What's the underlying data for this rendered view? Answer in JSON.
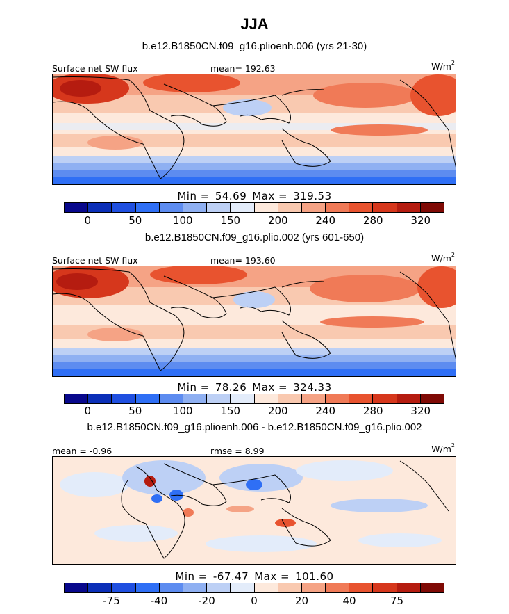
{
  "figure": {
    "title": "JJA",
    "units_prefix": "W/m",
    "units_exp": "2"
  },
  "panels": [
    {
      "subtitle": "b.e12.B1850CN.f09_g16.plioenh.006 (yrs 21-30)",
      "left_label": "Surface net SW flux",
      "center_label": "mean= 192.63",
      "min_label": "Min =",
      "min_value": "54.69",
      "max_label": "Max =",
      "max_value": "319.53",
      "colorbar_ticks": [
        "0",
        "50",
        "100",
        "150",
        "200",
        "240",
        "280",
        "320"
      ],
      "palette": "absolute"
    },
    {
      "subtitle": "b.e12.B1850CN.f09_g16.plio.002 (yrs 601-650)",
      "left_label": "Surface net SW flux",
      "center_label": "mean= 193.60",
      "min_label": "Min =",
      "min_value": "78.26",
      "max_label": "Max =",
      "max_value": "324.33",
      "colorbar_ticks": [
        "0",
        "50",
        "100",
        "150",
        "200",
        "240",
        "280",
        "320"
      ],
      "palette": "absolute"
    },
    {
      "subtitle": "b.e12.B1850CN.f09_g16.plioenh.006 - b.e12.B1850CN.f09_g16.plio.002",
      "left_label": "mean = -0.96",
      "center_label": "rmse = 8.99",
      "min_label": "Min =",
      "min_value": "-67.47",
      "max_label": "Max =",
      "max_value": "101.60",
      "colorbar_ticks": [
        "-75",
        "-40",
        "-20",
        "0",
        "20",
        "40",
        "75"
      ],
      "palette": "difference"
    }
  ],
  "colors": {
    "absolute": [
      "#08088c",
      "#0b2fb8",
      "#1f4fe0",
      "#2f6ff5",
      "#5d8cf0",
      "#8fb0f2",
      "#bdd0f5",
      "#e3ecfa",
      "#fde9dc",
      "#f9c9b0",
      "#f5a385",
      "#f07a57",
      "#e8532f",
      "#d6371c",
      "#b51c10",
      "#7f0a05"
    ],
    "difference": [
      "#08088c",
      "#0b2fb8",
      "#1f4fe0",
      "#2f6ff5",
      "#5d8cf0",
      "#8fb0f2",
      "#bdd0f5",
      "#e3ecfa",
      "#fde9dc",
      "#f9c9b0",
      "#f5a385",
      "#f07a57",
      "#e8532f",
      "#d6371c",
      "#b51c10",
      "#7f0a05"
    ]
  }
}
